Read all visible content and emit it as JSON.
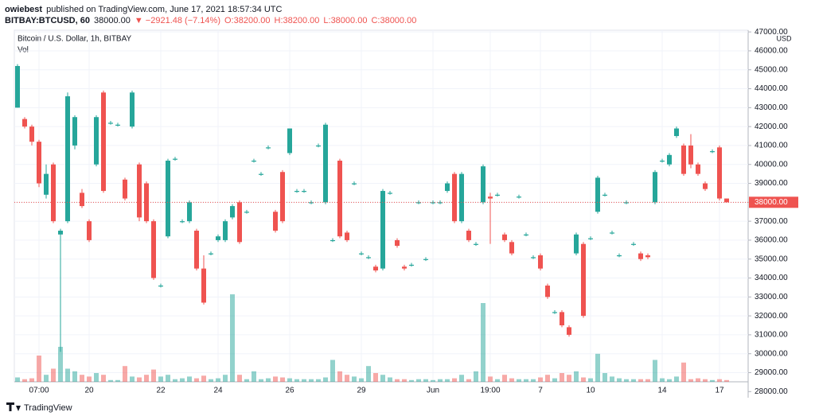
{
  "header": {
    "author": "owiebest",
    "published": "published on TradingView.com, June 17, 2021 18:57:34 UTC",
    "symbol": "BITBAY:BTCUSD, 60",
    "price": "38000.00",
    "change": "▼ −2921.48 (−7.14%)",
    "open": "O:38200.00",
    "high": "H:38200.00",
    "low": "L:38000.00",
    "close": "C:38000.00"
  },
  "chart_data": {
    "type": "candlestick",
    "title": "Bitcoin / U.S. Dollar, 1h, BITBAY",
    "volume_label": "Vol",
    "currency": "USD",
    "up_color": "#26a69a",
    "down_color": "#ef5350",
    "categories": [
      null,
      null,
      null,
      "07:00",
      null,
      null,
      null,
      null,
      null,
      null,
      "20",
      null,
      null,
      null,
      null,
      null,
      null,
      null,
      null,
      null,
      "22",
      null,
      null,
      null,
      null,
      null,
      null,
      null,
      "24",
      null,
      null,
      null,
      null,
      null,
      null,
      null,
      null,
      null,
      "26",
      null,
      null,
      null,
      null,
      null,
      null,
      null,
      null,
      null,
      "29",
      null,
      null,
      null,
      null,
      null,
      null,
      null,
      null,
      null,
      "Jun",
      null,
      null,
      null,
      null,
      null,
      null,
      null,
      "19:00",
      null,
      null,
      null,
      null,
      null,
      null,
      "7",
      null,
      null,
      null,
      null,
      null,
      null,
      "10",
      null,
      null,
      null,
      null,
      null,
      null,
      null,
      null,
      null,
      "14",
      null,
      null,
      null,
      null,
      null,
      null,
      null,
      "17",
      null
    ],
    "open": [
      43000,
      42400,
      42000,
      41200,
      38400,
      40000,
      36300,
      37000,
      41000,
      38500,
      37000,
      40000,
      43800,
      42200,
      42100,
      39200,
      42000,
      40000,
      39000,
      37000,
      33600,
      36200,
      40300,
      37000,
      37000,
      36500,
      34500,
      35300,
      36000,
      36000,
      37200,
      38000,
      37500,
      40200,
      39500,
      40900,
      37500,
      39600,
      40600,
      38600,
      38600,
      38000,
      41000,
      38000,
      36000,
      40200,
      36400,
      39000,
      35300,
      35100,
      34600,
      34500,
      38500,
      36000,
      34600,
      34700,
      38000,
      35000,
      38000,
      38000,
      38600,
      39500,
      37000,
      36500,
      35800,
      38000,
      38300,
      38400,
      36300,
      35900,
      38300,
      36300,
      35100,
      35200,
      33600,
      32200,
      32200,
      31400,
      35300,
      35800,
      36100,
      37500,
      38400,
      36400,
      35200,
      38000,
      35800,
      35300,
      35200,
      38000,
      40200,
      40000,
      41500,
      41000,
      41000,
      40000,
      39000,
      40700,
      40900,
      38200
    ],
    "high": [
      45300,
      42500,
      42100,
      41300,
      40000,
      40100,
      36600,
      43800,
      42600,
      38700,
      37100,
      42600,
      43900,
      42300,
      42200,
      39300,
      43900,
      40100,
      39100,
      37100,
      33700,
      40300,
      40400,
      37100,
      38100,
      36600,
      35200,
      35400,
      36300,
      37100,
      37900,
      38100,
      37600,
      40300,
      39600,
      41000,
      37600,
      39700,
      41900,
      38700,
      38700,
      38100,
      41100,
      42200,
      36100,
      40300,
      36500,
      39100,
      35400,
      35200,
      34700,
      38700,
      38600,
      36100,
      34700,
      34800,
      38100,
      35100,
      38100,
      38100,
      39100,
      39600,
      39600,
      36600,
      35900,
      40000,
      38500,
      38500,
      36400,
      36000,
      38400,
      36400,
      35200,
      35300,
      33700,
      32300,
      32300,
      31500,
      36400,
      35900,
      36200,
      39400,
      38500,
      36500,
      35300,
      38100,
      35900,
      35400,
      35300,
      39700,
      40300,
      40600,
      42000,
      41100,
      41600,
      40100,
      39100,
      40800,
      41000,
      38200
    ],
    "low": [
      43000,
      41900,
      41000,
      38800,
      38200,
      36900,
      30100,
      36900,
      40800,
      37700,
      35900,
      39900,
      38500,
      42100,
      42000,
      38100,
      41900,
      37000,
      36900,
      33900,
      33500,
      36100,
      40200,
      36900,
      36900,
      34400,
      32600,
      35200,
      35900,
      35900,
      37100,
      35800,
      37400,
      40100,
      39400,
      40800,
      36400,
      36900,
      40500,
      38500,
      38500,
      37900,
      40900,
      37900,
      35900,
      36100,
      35900,
      38900,
      35200,
      35000,
      34300,
      34400,
      38400,
      35600,
      34400,
      34600,
      37900,
      34900,
      37900,
      37900,
      38500,
      36900,
      36900,
      35900,
      35700,
      37900,
      35800,
      38300,
      35900,
      35200,
      38200,
      36200,
      35000,
      34400,
      32900,
      32100,
      31400,
      30900,
      35200,
      31900,
      36000,
      37400,
      38300,
      36300,
      35100,
      37900,
      35700,
      34900,
      35000,
      37900,
      40100,
      39900,
      41400,
      39400,
      39800,
      39400,
      38600,
      40600,
      38100,
      38000
    ],
    "close": [
      45200,
      42000,
      41200,
      39000,
      39500,
      37000,
      36500,
      43600,
      42500,
      37800,
      36000,
      42500,
      38600,
      42200,
      42100,
      38200,
      43800,
      37200,
      37000,
      34000,
      33600,
      40200,
      40300,
      37000,
      38000,
      34500,
      32700,
      35300,
      36200,
      37000,
      37800,
      35900,
      37500,
      40200,
      39500,
      40900,
      36500,
      37000,
      41900,
      38600,
      38600,
      38000,
      41000,
      42100,
      36000,
      36200,
      36000,
      39000,
      35300,
      35100,
      34400,
      38600,
      38500,
      35700,
      34500,
      34700,
      38000,
      35000,
      38000,
      38000,
      39000,
      37000,
      39500,
      36000,
      35800,
      39900,
      38200,
      38400,
      36000,
      35300,
      38300,
      36300,
      35100,
      34500,
      33000,
      32200,
      31500,
      31000,
      36300,
      32000,
      36100,
      39300,
      38400,
      36400,
      35200,
      38000,
      35800,
      35000,
      35100,
      39600,
      40200,
      40500,
      41900,
      39500,
      40000,
      39500,
      38700,
      40700,
      38200,
      38000
    ],
    "volume": [
      5,
      3,
      4,
      30,
      8,
      15,
      40,
      15,
      12,
      8,
      6,
      10,
      8,
      2,
      2,
      18,
      6,
      5,
      8,
      14,
      6,
      8,
      3,
      4,
      6,
      4,
      7,
      3,
      4,
      8,
      100,
      8,
      3,
      12,
      3,
      4,
      6,
      5,
      4,
      3,
      3,
      3,
      3,
      5,
      25,
      12,
      8,
      6,
      4,
      18,
      10,
      8,
      5,
      3,
      3,
      2,
      3,
      3,
      2,
      3,
      3,
      4,
      8,
      3,
      12,
      90,
      6,
      3,
      8,
      4,
      3,
      3,
      3,
      5,
      8,
      4,
      10,
      8,
      12,
      5,
      4,
      32,
      10,
      6,
      4,
      3,
      3,
      3,
      3,
      25,
      4,
      3,
      6,
      22,
      3,
      4,
      3,
      2,
      3,
      2
    ],
    "ylim": [
      27950,
      47090
    ],
    "yticks": [
      {
        "value": 28000,
        "label": "28000.00"
      },
      {
        "value": 29000,
        "label": "29000.00"
      },
      {
        "value": 30000,
        "label": "30000.00"
      },
      {
        "value": 31000,
        "label": "31000.00"
      },
      {
        "value": 32000,
        "label": "32000.00"
      },
      {
        "value": 33000,
        "label": "33000.00"
      },
      {
        "value": 34000,
        "label": "34000.00"
      },
      {
        "value": 35000,
        "label": "35000.00"
      },
      {
        "value": 36000,
        "label": "36000.00"
      },
      {
        "value": 37000,
        "label": "37000.00"
      },
      {
        "value": 38000,
        "label": "38000.00"
      },
      {
        "value": 39000,
        "label": "39000.00"
      },
      {
        "value": 40000,
        "label": "40000.00"
      },
      {
        "value": 41000,
        "label": "41000.00"
      },
      {
        "value": 42000,
        "label": "42000.00"
      },
      {
        "value": 43000,
        "label": "43000.00"
      },
      {
        "value": 44000,
        "label": "44000.00"
      },
      {
        "value": 45000,
        "label": "45000.00"
      },
      {
        "value": 46000,
        "label": "46000.00"
      },
      {
        "value": 47000,
        "label": "47000.00"
      }
    ],
    "last_price": {
      "value": 38000,
      "label": "38000.00"
    },
    "grid": true
  },
  "footer": {
    "brand": "TradingView"
  }
}
